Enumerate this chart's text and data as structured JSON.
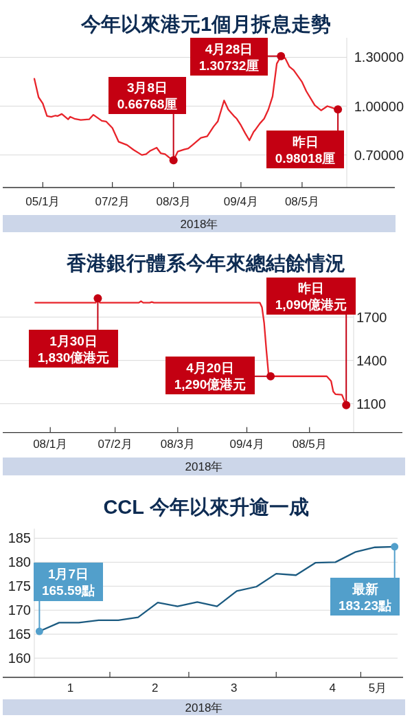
{
  "chart_data": [
    {
      "type": "line",
      "title": "今年以來港元1個月拆息走勢",
      "xlabel": "2018年",
      "grid": "y",
      "xlim": [
        "2017-12-17",
        "2018-06-21"
      ],
      "ylim": [
        0.5,
        1.42
      ],
      "xticks": [
        {
          "value": "2018-01-05",
          "label": "05/1月"
        },
        {
          "value": "2018-02-07",
          "label": "07/2月"
        },
        {
          "value": "2018-03-08",
          "label": "08/3月"
        },
        {
          "value": "2018-04-09",
          "label": "09/4月"
        },
        {
          "value": "2018-05-08",
          "label": "08/5月"
        }
      ],
      "yticks": [
        {
          "value": 0.7,
          "label": "0.70000"
        },
        {
          "value": 1.0,
          "label": "1.00000"
        },
        {
          "value": 1.3,
          "label": "1.30000"
        }
      ],
      "x": [
        "2018-01-01",
        "2018-01-03",
        "2018-01-05",
        "2018-01-07",
        "2018-01-09",
        "2018-01-11",
        "2018-01-12",
        "2018-01-14",
        "2018-01-17",
        "2018-01-18",
        "2018-01-20",
        "2018-01-23",
        "2018-01-27",
        "2018-01-29",
        "2018-02-02",
        "2018-02-04",
        "2018-02-07",
        "2018-02-10",
        "2018-02-14",
        "2018-02-17",
        "2018-02-21",
        "2018-02-23",
        "2018-02-25",
        "2018-02-28",
        "2018-03-02",
        "2018-03-04",
        "2018-03-06",
        "2018-03-08",
        "2018-03-10",
        "2018-03-13",
        "2018-03-15",
        "2018-03-17",
        "2018-03-21",
        "2018-03-24",
        "2018-03-27",
        "2018-03-29",
        "2018-04-01",
        "2018-04-03",
        "2018-04-06",
        "2018-04-07",
        "2018-04-09",
        "2018-04-11",
        "2018-04-13",
        "2018-04-15",
        "2018-04-16",
        "2018-04-18",
        "2018-04-20",
        "2018-04-22",
        "2018-04-24",
        "2018-04-26",
        "2018-04-28",
        "2018-04-30",
        "2018-05-02",
        "2018-05-04",
        "2018-05-08",
        "2018-05-10",
        "2018-05-14",
        "2018-05-17",
        "2018-05-20",
        "2018-05-23",
        "2018-05-25"
      ],
      "series": [
        {
          "color": "#e8232a",
          "values": [
            1.168,
            1.055,
            1.016,
            0.939,
            0.934,
            0.942,
            0.939,
            0.952,
            0.919,
            0.935,
            0.923,
            0.915,
            0.919,
            0.947,
            0.91,
            0.906,
            0.866,
            0.781,
            0.761,
            0.732,
            0.7,
            0.705,
            0.726,
            0.745,
            0.71,
            0.705,
            0.684,
            0.66768,
            0.721,
            0.734,
            0.74,
            0.761,
            0.805,
            0.815,
            0.874,
            0.906,
            1.035,
            0.979,
            0.935,
            0.923,
            0.882,
            0.834,
            0.79,
            0.842,
            0.858,
            0.894,
            0.923,
            0.979,
            1.06,
            1.261,
            1.30732,
            1.294,
            1.242,
            1.221,
            1.148,
            1.092,
            1.006,
            0.974,
            1.0,
            0.987,
            0.98018
          ]
        }
      ],
      "annotations": [
        {
          "text": "3月8日\n0.66768厘",
          "x": "2018-03-08",
          "y": 0.66768
        },
        {
          "text": "4月28日\n1.30732厘",
          "x": "2018-04-28",
          "y": 1.30732
        },
        {
          "text": "昨日\n0.98018厘",
          "x": "2018-05-25",
          "y": 0.98018
        }
      ]
    },
    {
      "type": "line",
      "title": "香港銀行體系今年來總結餘情況",
      "xlabel": "2018年",
      "grid": "y",
      "xlim": [
        "2017-12-17",
        "2018-06-20"
      ],
      "ylim": [
        900,
        1960
      ],
      "xticks": [
        {
          "value": "2018-01-08",
          "label": "08/1月"
        },
        {
          "value": "2018-02-07",
          "label": "07/2月"
        },
        {
          "value": "2018-03-08",
          "label": "08/3月"
        },
        {
          "value": "2018-04-09",
          "label": "09/4月"
        },
        {
          "value": "2018-05-08",
          "label": "08/5月"
        }
      ],
      "yticks": [
        1100,
        1400,
        1700
      ],
      "x": [
        "2018-01-01",
        "2018-01-29",
        "2018-01-30",
        "2018-01-31",
        "2018-02-18",
        "2018-02-19",
        "2018-02-20",
        "2018-02-23",
        "2018-02-24",
        "2018-02-25",
        "2018-04-15",
        "2018-04-16",
        "2018-04-17",
        "2018-04-18",
        "2018-04-19",
        "2018-04-20",
        "2018-05-16",
        "2018-05-18",
        "2018-05-19",
        "2018-05-20",
        "2018-05-23",
        "2018-05-25"
      ],
      "series": [
        {
          "color": "#e8232a",
          "values": [
            1800,
            1800,
            1830,
            1800,
            1800,
            1810,
            1800,
            1800,
            1805,
            1800,
            1800,
            1769,
            1660,
            1477,
            1312,
            1290,
            1290,
            1257,
            1184,
            1166,
            1162,
            1090
          ]
        }
      ],
      "annotations": [
        {
          "text": "1月30日\n1,830億港元",
          "x": "2018-01-30",
          "y": 1830
        },
        {
          "text": "4月20日\n1,290億港元",
          "x": "2018-04-20",
          "y": 1290
        },
        {
          "text": "昨日\n1,090億港元",
          "x": "2018-05-25",
          "y": 1090
        }
      ]
    },
    {
      "type": "line",
      "title": "CCL 今年以來升逾一成",
      "xlabel": "2018年",
      "grid": "y",
      "xlim": [
        "2017-12-25",
        "2018-05-16"
      ],
      "ylim": [
        156,
        187
      ],
      "xticks": [
        {
          "value": "2018-01-18",
          "label": "1"
        },
        {
          "value": "2018-02-01",
          "label": null
        },
        {
          "value": "2018-02-17",
          "label": "2"
        },
        {
          "value": "2018-03-01",
          "label": null
        },
        {
          "value": "2018-03-17",
          "label": "3"
        },
        {
          "value": "2018-04-01",
          "label": null
        },
        {
          "value": "2018-04-21",
          "label": "4"
        },
        {
          "value": "2018-05-01",
          "label": null
        },
        {
          "value": "2018-05-07",
          "label": "5月"
        }
      ],
      "yticks": [
        160,
        165,
        170,
        175,
        180,
        185
      ],
      "x": [
        "2018-01-07",
        "2018-01-14",
        "2018-01-21",
        "2018-01-28",
        "2018-02-04",
        "2018-02-11",
        "2018-02-18",
        "2018-02-25",
        "2018-03-04",
        "2018-03-11",
        "2018-03-18",
        "2018-03-25",
        "2018-04-01",
        "2018-04-08",
        "2018-04-15",
        "2018-04-22",
        "2018-04-29",
        "2018-05-06",
        "2018-05-13"
      ],
      "series": [
        {
          "color": "#1b5a80",
          "values": [
            165.59,
            167.4,
            167.4,
            167.9,
            167.9,
            168.5,
            171.6,
            170.8,
            171.7,
            170.8,
            174.0,
            174.9,
            177.6,
            177.3,
            179.9,
            180.0,
            182.1,
            183.1,
            183.23
          ]
        }
      ],
      "annotations": [
        {
          "text": "1月7日\n165.59點",
          "x": "2018-01-07",
          "y": 165.59
        },
        {
          "text": "最新\n183.23點",
          "x": "2018-05-13",
          "y": 183.23
        }
      ]
    }
  ]
}
